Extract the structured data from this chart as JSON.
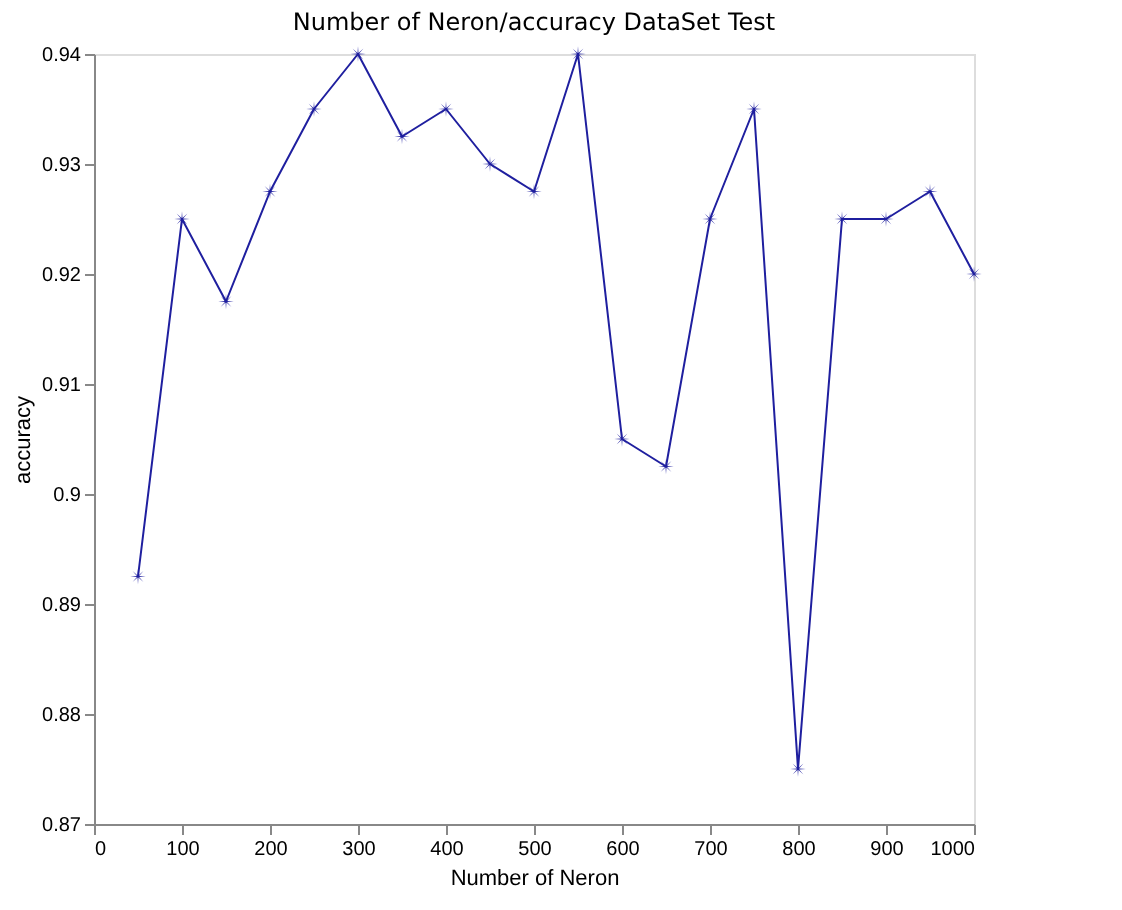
{
  "chart_data": {
    "type": "line",
    "title": "Number of Neron/accuracy DataSet Test",
    "xlabel": "Number of Neron",
    "ylabel": "accuracy",
    "x": [
      50,
      100,
      150,
      200,
      250,
      300,
      350,
      400,
      450,
      500,
      550,
      600,
      650,
      700,
      750,
      800,
      850,
      900,
      950,
      1000
    ],
    "series": [
      {
        "color": "#1f1f9f",
        "values": [
          0.8925,
          0.925,
          0.9175,
          0.9275,
          0.935,
          0.94,
          0.9325,
          0.935,
          0.93,
          0.9275,
          0.94,
          0.905,
          0.9025,
          0.925,
          0.935,
          0.875,
          0.925,
          0.925,
          0.9275,
          0.92
        ]
      }
    ],
    "xlim": [
      0,
      1000
    ],
    "xticks": [
      0,
      100,
      200,
      300,
      400,
      500,
      600,
      700,
      800,
      900,
      1000
    ],
    "ylim": [
      0.87,
      0.94
    ],
    "yticks": [
      0.87,
      0.88,
      0.89,
      0.9,
      0.91,
      0.92,
      0.93,
      0.94
    ],
    "marker": "star",
    "line_style": "solid",
    "grid": false
  }
}
